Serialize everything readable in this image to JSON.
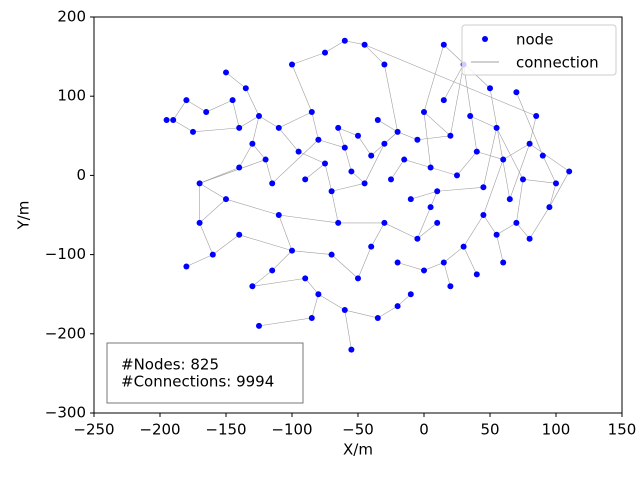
{
  "chart_data": {
    "type": "scatter",
    "xlabel": "X/m",
    "ylabel": "Y/m",
    "xlim": [
      -250,
      150
    ],
    "ylim": [
      -300,
      200
    ],
    "xticks": [
      {
        "value": -250,
        "label": "−250"
      },
      {
        "value": -200,
        "label": "−200"
      },
      {
        "value": -150,
        "label": "−150"
      },
      {
        "value": -100,
        "label": "−100"
      },
      {
        "value": -50,
        "label": "−50"
      },
      0,
      50,
      100,
      150
    ],
    "yticks": [
      {
        "value": -300,
        "label": "−300"
      },
      {
        "value": -200,
        "label": "−200"
      },
      {
        "value": -100,
        "label": "−100"
      },
      0,
      100,
      200
    ],
    "grid": false,
    "legend": "upper right",
    "annotation": [
      "#Nodes: 825",
      "#Connections: 9994"
    ],
    "series": [
      {
        "name": "node",
        "color": "#0000ff",
        "x": [
          -190,
          -180,
          -175,
          -165,
          -150,
          -145,
          -140,
          -135,
          -130,
          -125,
          -120,
          -115,
          -110,
          -100,
          -95,
          -90,
          -85,
          -80,
          -75,
          -70,
          -65,
          -60,
          -55,
          -50,
          -45,
          -40,
          -35,
          -30,
          -25,
          -20,
          -15,
          -10,
          -5,
          0,
          5,
          10,
          15,
          20,
          25,
          30,
          35,
          40,
          45,
          50,
          55,
          60,
          65,
          70,
          75,
          80,
          90,
          100,
          110,
          -60,
          -45,
          -75,
          -30,
          15,
          -180,
          -170,
          -160,
          -150,
          -140,
          -130,
          -125,
          -110,
          -100,
          -90,
          -80,
          -70,
          -60,
          -55,
          -50,
          -40,
          -35,
          -30,
          -20,
          -10,
          -5,
          0,
          10,
          15,
          20,
          30,
          40,
          45,
          55,
          60,
          70,
          80,
          -170,
          -140,
          -115,
          -85,
          -195,
          95,
          85,
          -20,
          5,
          -65
        ],
        "values": [
          70,
          95,
          55,
          80,
          130,
          95,
          60,
          110,
          40,
          75,
          20,
          -10,
          60,
          140,
          30,
          -5,
          80,
          45,
          15,
          -20,
          60,
          35,
          5,
          50,
          -10,
          25,
          70,
          40,
          -5,
          55,
          20,
          -30,
          45,
          80,
          10,
          -20,
          95,
          50,
          0,
          140,
          75,
          30,
          -15,
          110,
          60,
          20,
          -30,
          105,
          -5,
          40,
          25,
          -10,
          5,
          170,
          165,
          155,
          140,
          165,
          -115,
          -60,
          -100,
          -30,
          -75,
          -140,
          -190,
          -50,
          -95,
          -130,
          -150,
          -100,
          -170,
          -220,
          -130,
          -90,
          -180,
          -60,
          -110,
          -150,
          -80,
          -120,
          -60,
          -110,
          -140,
          -90,
          -125,
          -50,
          -75,
          -110,
          -60,
          -80,
          -10,
          10,
          -120,
          -180,
          70,
          -40,
          75,
          -165,
          -40,
          -60
        ]
      },
      {
        "name": "connection",
        "color": "#a0a0a0",
        "pairs": [
          [
            0,
            1
          ],
          [
            0,
            2
          ],
          [
            1,
            3
          ],
          [
            2,
            6
          ],
          [
            3,
            5
          ],
          [
            4,
            7
          ],
          [
            5,
            6
          ],
          [
            6,
            9
          ],
          [
            7,
            9
          ],
          [
            8,
            9
          ],
          [
            8,
            10
          ],
          [
            9,
            12
          ],
          [
            10,
            11
          ],
          [
            11,
            17
          ],
          [
            12,
            14
          ],
          [
            12,
            16
          ],
          [
            13,
            16
          ],
          [
            14,
            18
          ],
          [
            15,
            18
          ],
          [
            16,
            17
          ],
          [
            17,
            21
          ],
          [
            18,
            19
          ],
          [
            19,
            24
          ],
          [
            20,
            21
          ],
          [
            20,
            23
          ],
          [
            21,
            22
          ],
          [
            22,
            24
          ],
          [
            23,
            25
          ],
          [
            24,
            27
          ],
          [
            25,
            29
          ],
          [
            26,
            29
          ],
          [
            27,
            29
          ],
          [
            28,
            30
          ],
          [
            29,
            32
          ],
          [
            30,
            34
          ],
          [
            31,
            35
          ],
          [
            32,
            37
          ],
          [
            33,
            34
          ],
          [
            33,
            37
          ],
          [
            34,
            38
          ],
          [
            35,
            42
          ],
          [
            36,
            39
          ],
          [
            37,
            39
          ],
          [
            38,
            41
          ],
          [
            39,
            41
          ],
          [
            40,
            44
          ],
          [
            41,
            45
          ],
          [
            42,
            44
          ],
          [
            43,
            46
          ],
          [
            44,
            48
          ],
          [
            45,
            49
          ],
          [
            46,
            49
          ],
          [
            47,
            50
          ],
          [
            48,
            51
          ],
          [
            49,
            52
          ],
          [
            50,
            51
          ],
          [
            53,
            54
          ],
          [
            53,
            55
          ],
          [
            54,
            56
          ],
          [
            56,
            29
          ],
          [
            57,
            43
          ],
          [
            57,
            33
          ],
          [
            55,
            13
          ],
          [
            90,
            10
          ],
          [
            90,
            91
          ],
          [
            91,
            8
          ],
          [
            94,
            0
          ],
          [
            96,
            54
          ],
          [
            96,
            49
          ],
          [
            95,
            51
          ],
          [
            58,
            60
          ],
          [
            59,
            60
          ],
          [
            59,
            61
          ],
          [
            60,
            62
          ],
          [
            61,
            65
          ],
          [
            62,
            66
          ],
          [
            63,
            67
          ],
          [
            63,
            92
          ],
          [
            64,
            93
          ],
          [
            65,
            66
          ],
          [
            66,
            69
          ],
          [
            67,
            68
          ],
          [
            68,
            70
          ],
          [
            69,
            72
          ],
          [
            70,
            71
          ],
          [
            70,
            74
          ],
          [
            72,
            73
          ],
          [
            73,
            75
          ],
          [
            74,
            97
          ],
          [
            75,
            78
          ],
          [
            76,
            79
          ],
          [
            77,
            97
          ],
          [
            78,
            80
          ],
          [
            79,
            81
          ],
          [
            81,
            82
          ],
          [
            81,
            83
          ],
          [
            83,
            84
          ],
          [
            83,
            85
          ],
          [
            85,
            86
          ],
          [
            86,
            87
          ],
          [
            86,
            88
          ],
          [
            88,
            89
          ],
          [
            89,
            95
          ],
          [
            95,
            52
          ],
          [
            98,
            78
          ],
          [
            98,
            35
          ],
          [
            99,
            65
          ],
          [
            99,
            75
          ],
          [
            99,
            19
          ],
          [
            90,
            61
          ],
          [
            92,
            66
          ],
          [
            93,
            68
          ],
          [
            45,
            85
          ],
          [
            48,
            88
          ],
          [
            59,
            90
          ]
        ]
      }
    ]
  }
}
